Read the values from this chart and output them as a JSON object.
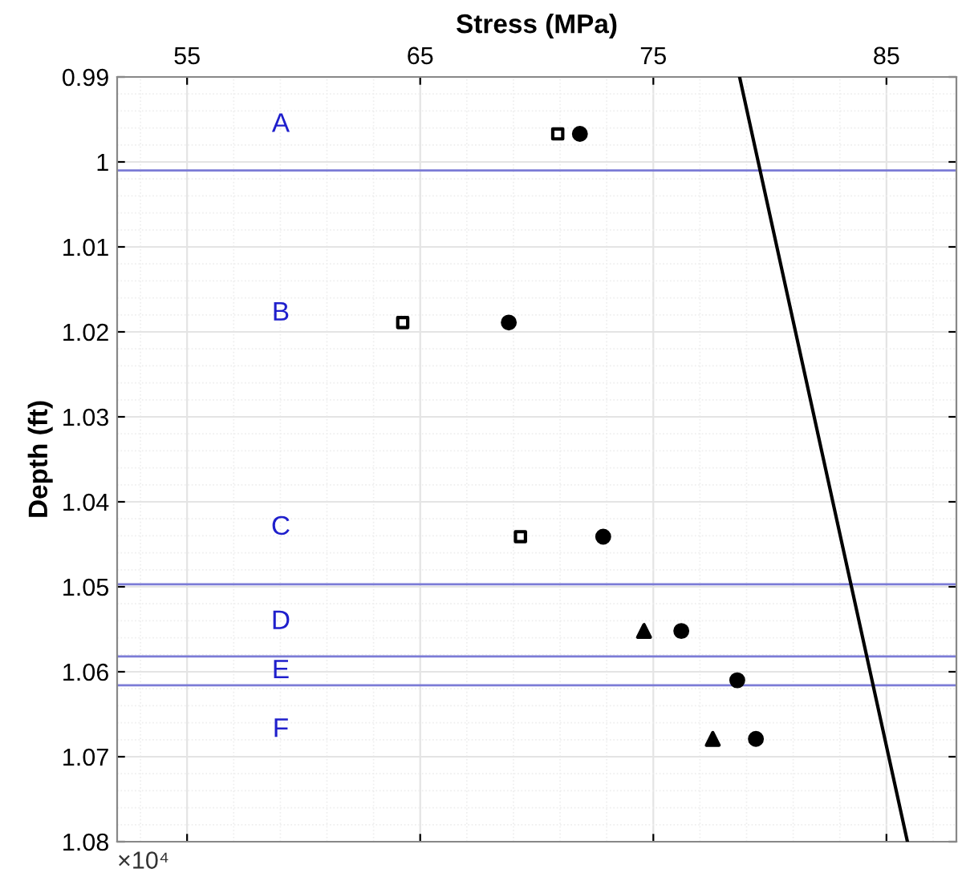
{
  "chart_data": {
    "type": "scatter",
    "xlabel": "Stress (MPa)",
    "ylabel": "Depth (ft)",
    "xlim": [
      52,
      88
    ],
    "xticks": [
      55,
      65,
      75,
      85
    ],
    "ylim": [
      1.08,
      0.99
    ],
    "yticks": [
      0.99,
      1,
      1.01,
      1.02,
      1.03,
      1.04,
      1.05,
      1.06,
      1.07,
      1.08
    ],
    "tick_labels": "xy",
    "grid": true,
    "series": [
      {
        "marker": "square",
        "color": "#000000",
        "x": [
          70.9,
          64.25,
          69.3
        ],
        "values": [
          0.9967,
          1.0189,
          1.0441
        ]
      },
      {
        "marker": "circle",
        "color": "#000000",
        "x": [
          71.85,
          68.8,
          72.85,
          76.2,
          78.6,
          79.4
        ],
        "values": [
          0.9967,
          1.0189,
          1.0441,
          1.0552,
          1.061,
          1.0679
        ]
      },
      {
        "marker": "triangle",
        "color": "#000000",
        "x": [
          74.6,
          77.55
        ],
        "values": [
          1.0552,
          1.0679
        ]
      },
      {
        "type": "line",
        "marker": "none",
        "color": "#000000",
        "x": [
          78.7,
          85.9
        ],
        "values": [
          0.99,
          1.08
        ]
      }
    ],
    "ref_lines": [
      {
        "axis": "y",
        "value": 1.001,
        "color": "#7b7bd6"
      },
      {
        "axis": "y",
        "value": 1.0497,
        "color": "#7b7bd6"
      },
      {
        "axis": "y",
        "value": 1.0582,
        "color": "#7b7bd6"
      },
      {
        "axis": "y",
        "value": 1.0616,
        "color": "#7b7bd6"
      }
    ],
    "annotations": [
      "A",
      "B",
      "C",
      "D",
      "E",
      "F",
      "×10⁴"
    ]
  }
}
